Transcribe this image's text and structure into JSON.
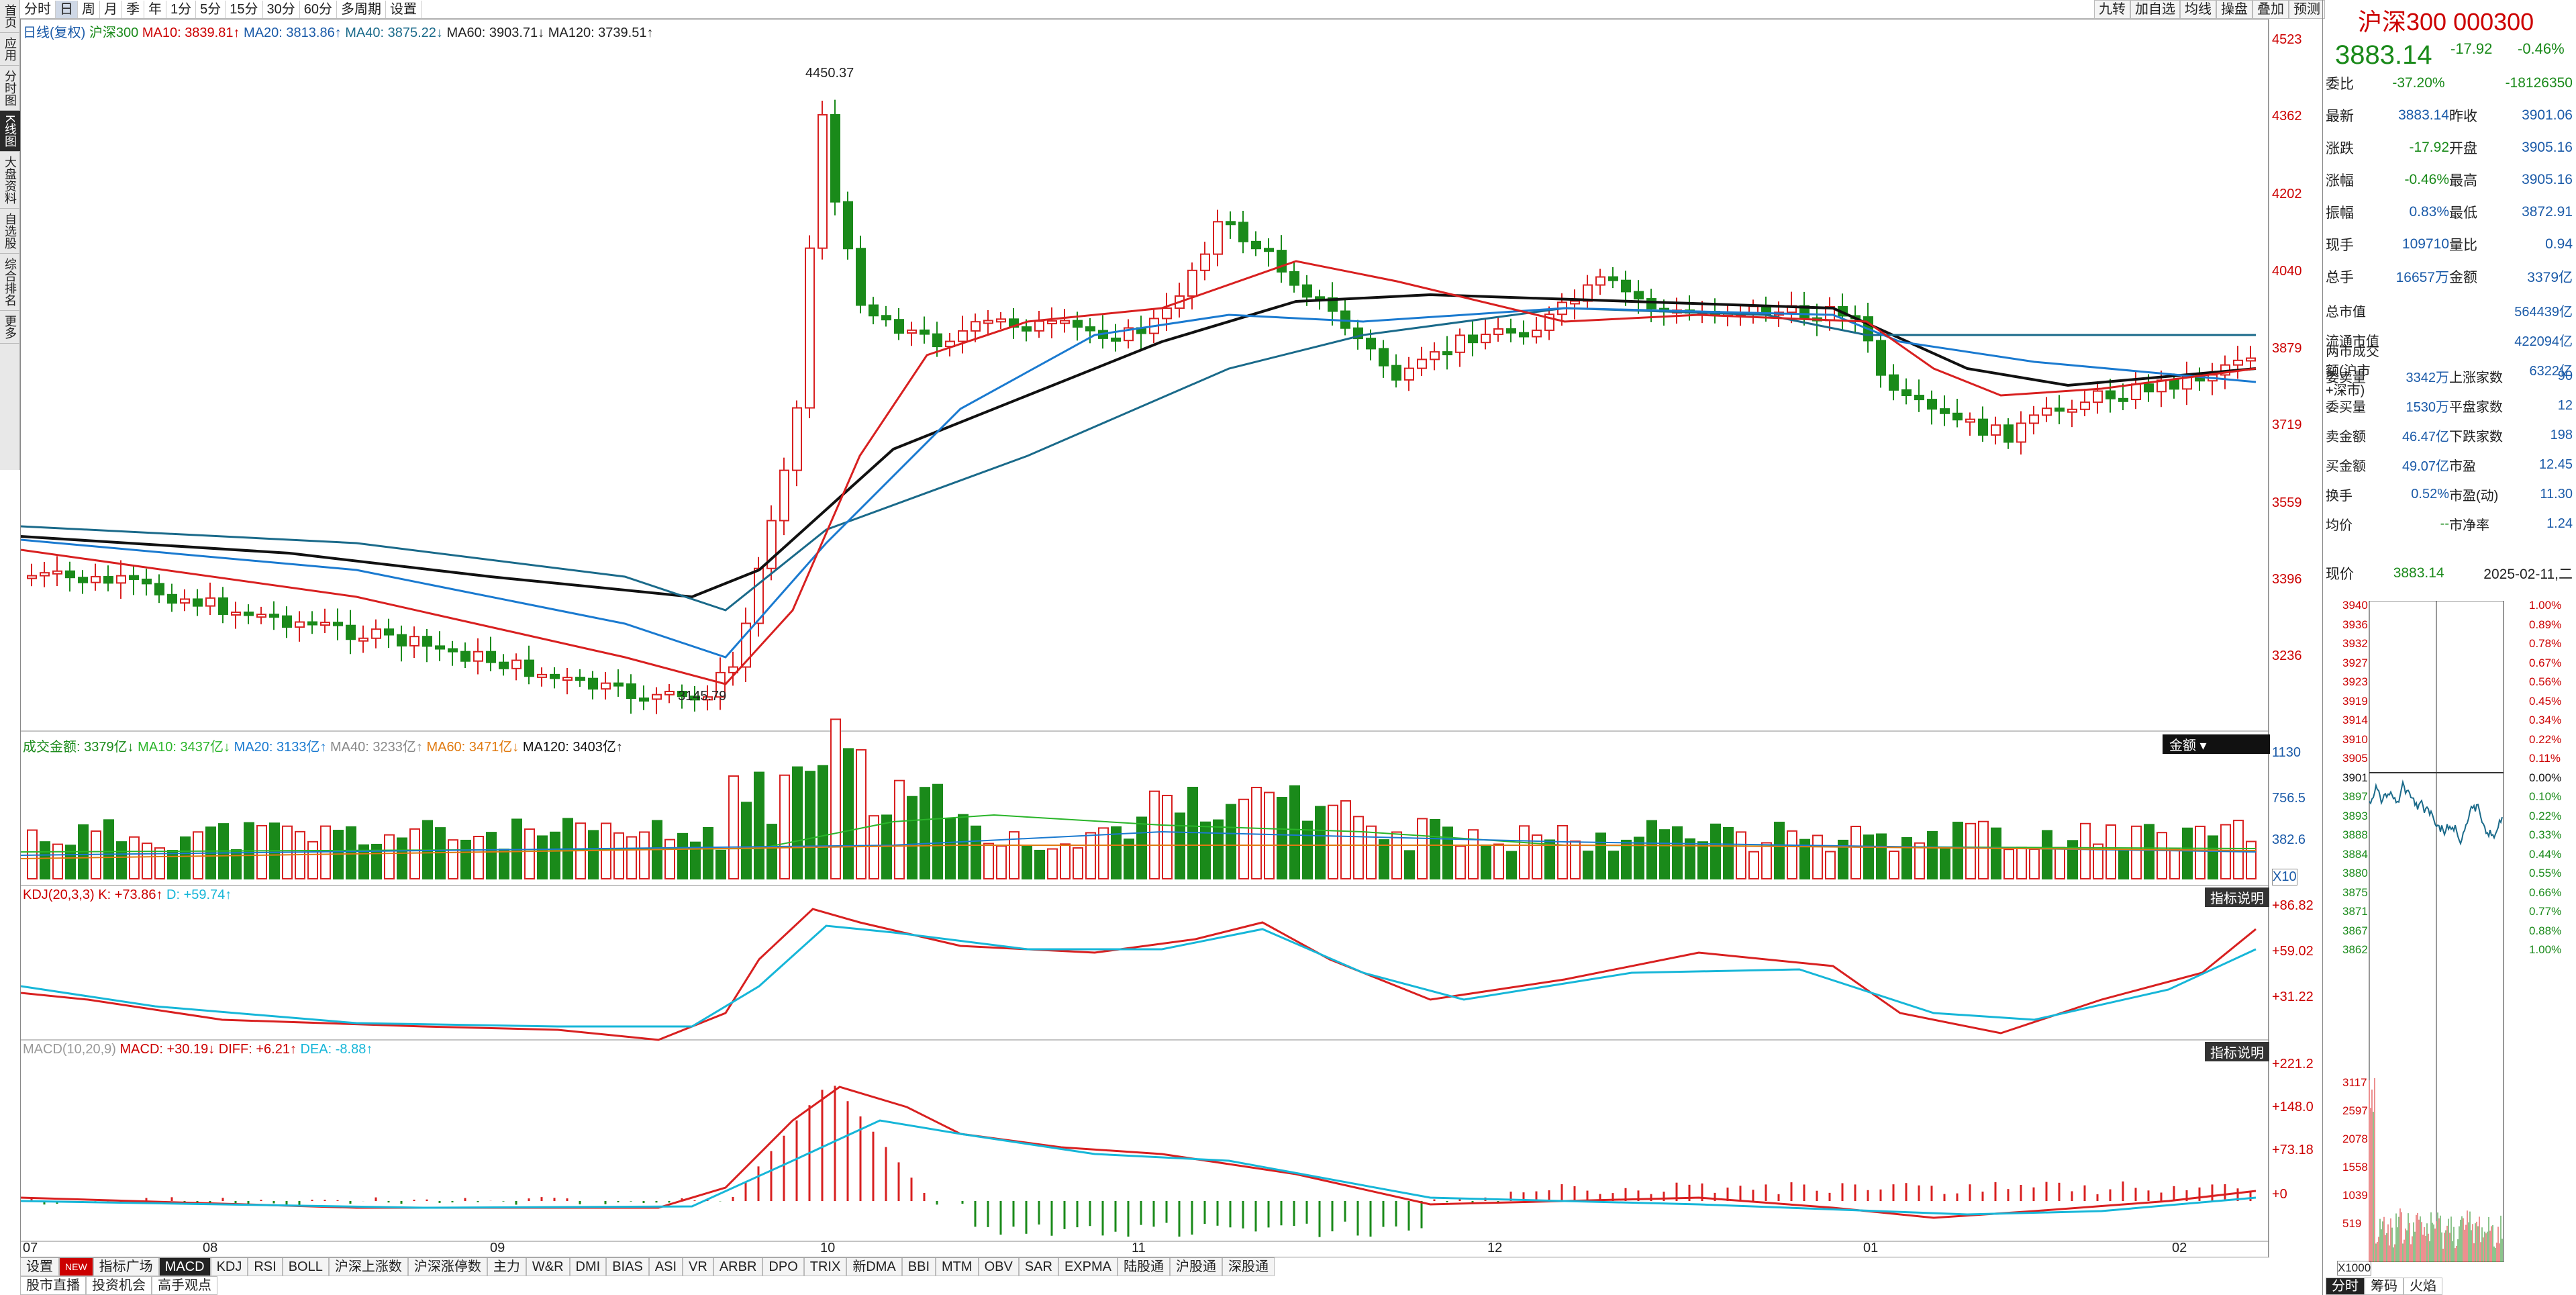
{
  "topbar": {
    "periods": [
      "分时",
      "日",
      "周",
      "月",
      "季",
      "年",
      "1分",
      "5分",
      "15分",
      "30分",
      "60分",
      "多周期",
      "设置"
    ],
    "right": [
      "九转",
      "加自选",
      "均线",
      "操盘",
      "叠加",
      "预测"
    ]
  },
  "leftnav": [
    "首页",
    "应用",
    "分时图",
    "K线图",
    "大盘资料",
    "自选股",
    "综合排名",
    "更多"
  ],
  "main": {
    "legend": {
      "title": "日线(复权)",
      "name": "沪深300",
      "ma10": "MA10: 3839.81↑",
      "ma20": "MA20: 3813.86↑",
      "ma40": "MA40: 3875.22↓",
      "ma60": "MA60: 3903.71↓",
      "ma120": "MA120: 3739.51↑"
    },
    "axis": [
      "4523",
      "4362",
      "4202",
      "4040",
      "3879",
      "3719",
      "3559",
      "3396",
      "3236"
    ],
    "high_label": "4450.37",
    "low_label": "3145.79"
  },
  "volume": {
    "legend": [
      "成交金额: 3379亿↓",
      "MA10: 3437亿↓",
      "MA20: 3133亿↑",
      "MA40: 3233亿↑",
      "MA60: 3471亿↓",
      "MA120: 3403亿↑"
    ],
    "axis": [
      "1130",
      "756.5",
      "382.6"
    ],
    "unit": "X10",
    "btn": "金额 ▾"
  },
  "kdj": {
    "legend": [
      "KDJ(20,3,3)",
      "K: +73.86↑",
      "D: +59.74↑"
    ],
    "axis": [
      "+86.82",
      "+59.02",
      "+31.22"
    ],
    "btn": "指标说明"
  },
  "macd": {
    "legend": [
      "MACD(10,20,9)",
      "MACD: +30.19↓",
      "DIFF: +6.21↑",
      "DEA: -8.88↑"
    ],
    "axis": [
      "+221.2",
      "+148.0",
      "+73.18",
      "+0"
    ],
    "btn": "指标说明"
  },
  "xaxis": [
    "07",
    "08",
    "09",
    "10",
    "11",
    "12",
    "01",
    "02"
  ],
  "bottombar": [
    "设置",
    "NEW",
    "指标广场",
    "MACD",
    "KDJ",
    "RSI",
    "BOLL",
    "沪深上涨数",
    "沪深涨停数",
    "主力",
    "W&R",
    "DMI",
    "BIAS",
    "ASI",
    "VR",
    "ARBR",
    "DPO",
    "TRIX",
    "新DMA",
    "BBI",
    "MTM",
    "OBV",
    "SAR",
    "EXPMA",
    "陆股通",
    "沪股通",
    "深股通"
  ],
  "bottom2": [
    "股市直播",
    "投资机会",
    "高手观点"
  ],
  "panel": {
    "title": "沪深300 000300",
    "price": "3883.14",
    "chg": "-17.92",
    "pct": "-0.46%",
    "rows": [
      [
        "委比",
        "-37.20%",
        "",
        "-18126350"
      ],
      [
        "最新",
        "3883.14",
        "昨收",
        "3901.06"
      ],
      [
        "涨跌",
        "-17.92",
        "开盘",
        "3905.16"
      ],
      [
        "涨幅",
        "-0.46%",
        "最高",
        "3905.16"
      ],
      [
        "振幅",
        "0.83%",
        "最低",
        "3872.91"
      ],
      [
        "现手",
        "109710",
        "量比",
        "0.94"
      ],
      [
        "总手",
        "16657万",
        "金额",
        "3379亿"
      ]
    ],
    "rows2": [
      [
        "总市值",
        "",
        "",
        "564439亿"
      ],
      [
        "流通市值",
        "",
        "",
        "422094亿"
      ],
      [
        "两市成交额(沪市+深市)",
        "",
        "",
        "6322亿"
      ]
    ],
    "rows3": [
      [
        "委卖量",
        "3342万",
        "上涨家数",
        "90"
      ],
      [
        "委买量",
        "1530万",
        "平盘家数",
        "12"
      ],
      [
        "卖金额",
        "46.47亿",
        "下跌家数",
        "198"
      ],
      [
        "买金额",
        "49.07亿",
        "市盈",
        "12.45"
      ],
      [
        "换手",
        "0.52%",
        "市盈(动)",
        "11.30"
      ],
      [
        "均价",
        "--",
        "市净率",
        "1.24"
      ]
    ],
    "now_label": "现价",
    "now": "3883.14",
    "date": "2025-02-11,二",
    "mini_left": [
      "3940",
      "3936",
      "3932",
      "3927",
      "3923",
      "3919",
      "3914",
      "3910",
      "3905",
      "3901",
      "3897",
      "3893",
      "3888",
      "3884",
      "3880",
      "3875",
      "3871",
      "3867",
      "3862"
    ],
    "mini_right": [
      "1.00%",
      "0.89%",
      "0.78%",
      "0.67%",
      "0.56%",
      "0.45%",
      "0.34%",
      "0.22%",
      "0.11%",
      "0.00%",
      "0.10%",
      "0.22%",
      "0.33%",
      "0.44%",
      "0.55%",
      "0.66%",
      "0.77%",
      "0.88%",
      "1.00%"
    ],
    "vol_axis": [
      "3117",
      "2597",
      "2078",
      "1558",
      "1039",
      "519"
    ],
    "vol_unit": "X1000",
    "tabs": [
      "分时",
      "筹码",
      "火焰"
    ]
  }
}
